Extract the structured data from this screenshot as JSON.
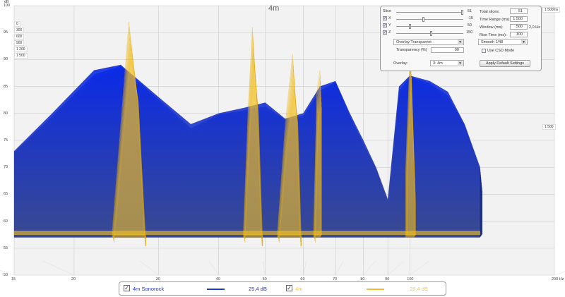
{
  "chart_data": {
    "type": "waterfall",
    "title": "4m",
    "ylabel": "dB",
    "ylim": [
      50,
      100
    ],
    "yticks": [
      "100",
      "95",
      "90",
      "85",
      "80",
      "75",
      "70",
      "65",
      "60",
      "55",
      "50"
    ],
    "xscale": "log",
    "xlim": [
      15,
      200
    ],
    "xticks": [
      {
        "v": 15,
        "l": "15"
      },
      {
        "v": 20,
        "l": "20"
      },
      {
        "v": 30,
        "l": "30"
      },
      {
        "v": 40,
        "l": "40"
      },
      {
        "v": 50,
        "l": "50"
      },
      {
        "v": 60,
        "l": "60"
      },
      {
        "v": 70,
        "l": "70"
      },
      {
        "v": 80,
        "l": "80"
      },
      {
        "v": 90,
        "l": "90"
      },
      {
        "v": 100,
        "l": "100"
      },
      {
        "v": 200,
        "l": "200 Hz"
      }
    ],
    "time_labels": [
      "0",
      "300",
      "600",
      "900",
      "1 200",
      "1 500"
    ],
    "time_end_label": "1 500ms",
    "side_labels": [
      "1 500ms",
      "1 500"
    ],
    "series": [
      {
        "name": "4m Sonorock",
        "color": "#1030e0",
        "value_label": "25,4 dB",
        "x": [
          15,
          18,
          22,
          25,
          30,
          35,
          40,
          45,
          50,
          55,
          60,
          65,
          70,
          75,
          80,
          85,
          90,
          95,
          100,
          110,
          120,
          130,
          140
        ],
        "y": [
          73,
          80,
          88,
          89,
          83,
          78,
          80,
          81,
          82,
          79,
          80,
          85,
          86,
          80,
          75,
          70,
          64,
          85,
          87,
          86,
          84,
          78,
          70
        ]
      },
      {
        "name": "4m",
        "color": "#f5c020",
        "value_label": "28,4 dB",
        "x": [
          24,
          25,
          26,
          27,
          28,
          45,
          46,
          47,
          48,
          49,
          53,
          55,
          57,
          58,
          59,
          63,
          64,
          65,
          98,
          100,
          102
        ],
        "y": [
          58,
          78,
          97,
          84,
          58,
          58,
          80,
          96,
          82,
          58,
          58,
          78,
          91,
          80,
          58,
          58,
          84,
          88,
          70,
          91,
          70
        ]
      }
    ]
  },
  "legend": [
    {
      "label": "4m Sonorock",
      "checked": "✓",
      "value": "25,4 dB",
      "color": "#2233cc",
      "line": "#2040c0"
    },
    {
      "label": "4m",
      "checked": "✓",
      "value": "28,4 dB",
      "color": "#f5c84a",
      "line": "#f5c030"
    }
  ],
  "panel": {
    "slice_label": "Slice",
    "slice_value": "51",
    "x_label": "X",
    "x_value": "-15",
    "y_label": "Y",
    "y_value": "50",
    "z_label": "Z",
    "z_value": "150",
    "check": "✓",
    "mode": "Overlay Transparent",
    "transparency_label": "Transparency (%)",
    "transparency_value": "90",
    "overlay_label": "Overlay:",
    "overlay_value": "3: 4m",
    "total_slices_label": "Total slices:",
    "total_slices": "51",
    "time_range_label": "Time Range (ms):",
    "time_range": "1 500",
    "window_label": "Window (ms):",
    "window": "500",
    "window_hz": "2,0 Hz",
    "rise_label": "Rise Time (ms):",
    "rise": "100",
    "smoothing": "Smooth 1/48",
    "csd_label": "Use CSD Mode",
    "apply_label": "Apply Default Settings"
  }
}
